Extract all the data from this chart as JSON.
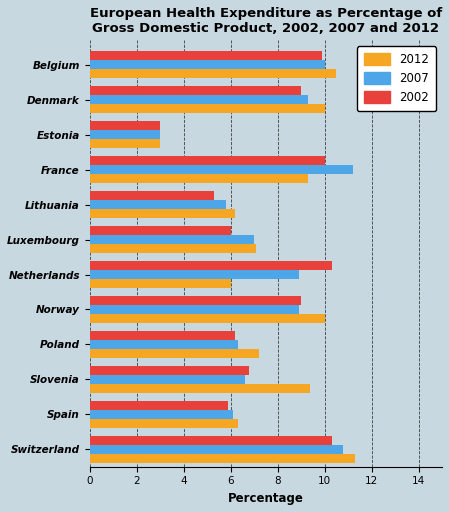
{
  "title": "European Health Expenditure as Percentage of\nGross Domestic Product, 2002, 2007 and 2012",
  "xlabel": "Percentage",
  "countries": [
    "Belgium",
    "Denmark",
    "Estonia",
    "France",
    "Lithuania",
    "Luxembourg",
    "Netherlands",
    "Norway",
    "Poland",
    "Slovenia",
    "Spain",
    "Switzerland"
  ],
  "values_2012": [
    10.5,
    10.0,
    3.0,
    9.3,
    6.2,
    7.1,
    6.0,
    10.0,
    7.2,
    9.4,
    6.3,
    11.3
  ],
  "values_2007": [
    10.0,
    9.3,
    3.0,
    11.2,
    5.8,
    7.0,
    8.9,
    8.9,
    6.3,
    6.6,
    6.1,
    10.8
  ],
  "values_2002": [
    9.9,
    9.0,
    3.0,
    10.0,
    5.3,
    6.0,
    10.3,
    9.0,
    6.2,
    6.8,
    5.9,
    10.3
  ],
  "color_2012": "#F5A623",
  "color_2007": "#4DA6E8",
  "color_2002": "#E8403A",
  "xlim": [
    0,
    15
  ],
  "xticks": [
    0,
    2,
    4,
    6,
    8,
    10,
    12,
    14
  ],
  "background_color": "#C8D8E0",
  "bar_height": 0.26,
  "title_fontsize": 9.5,
  "legend_fontsize": 8.5,
  "tick_fontsize": 7.5
}
